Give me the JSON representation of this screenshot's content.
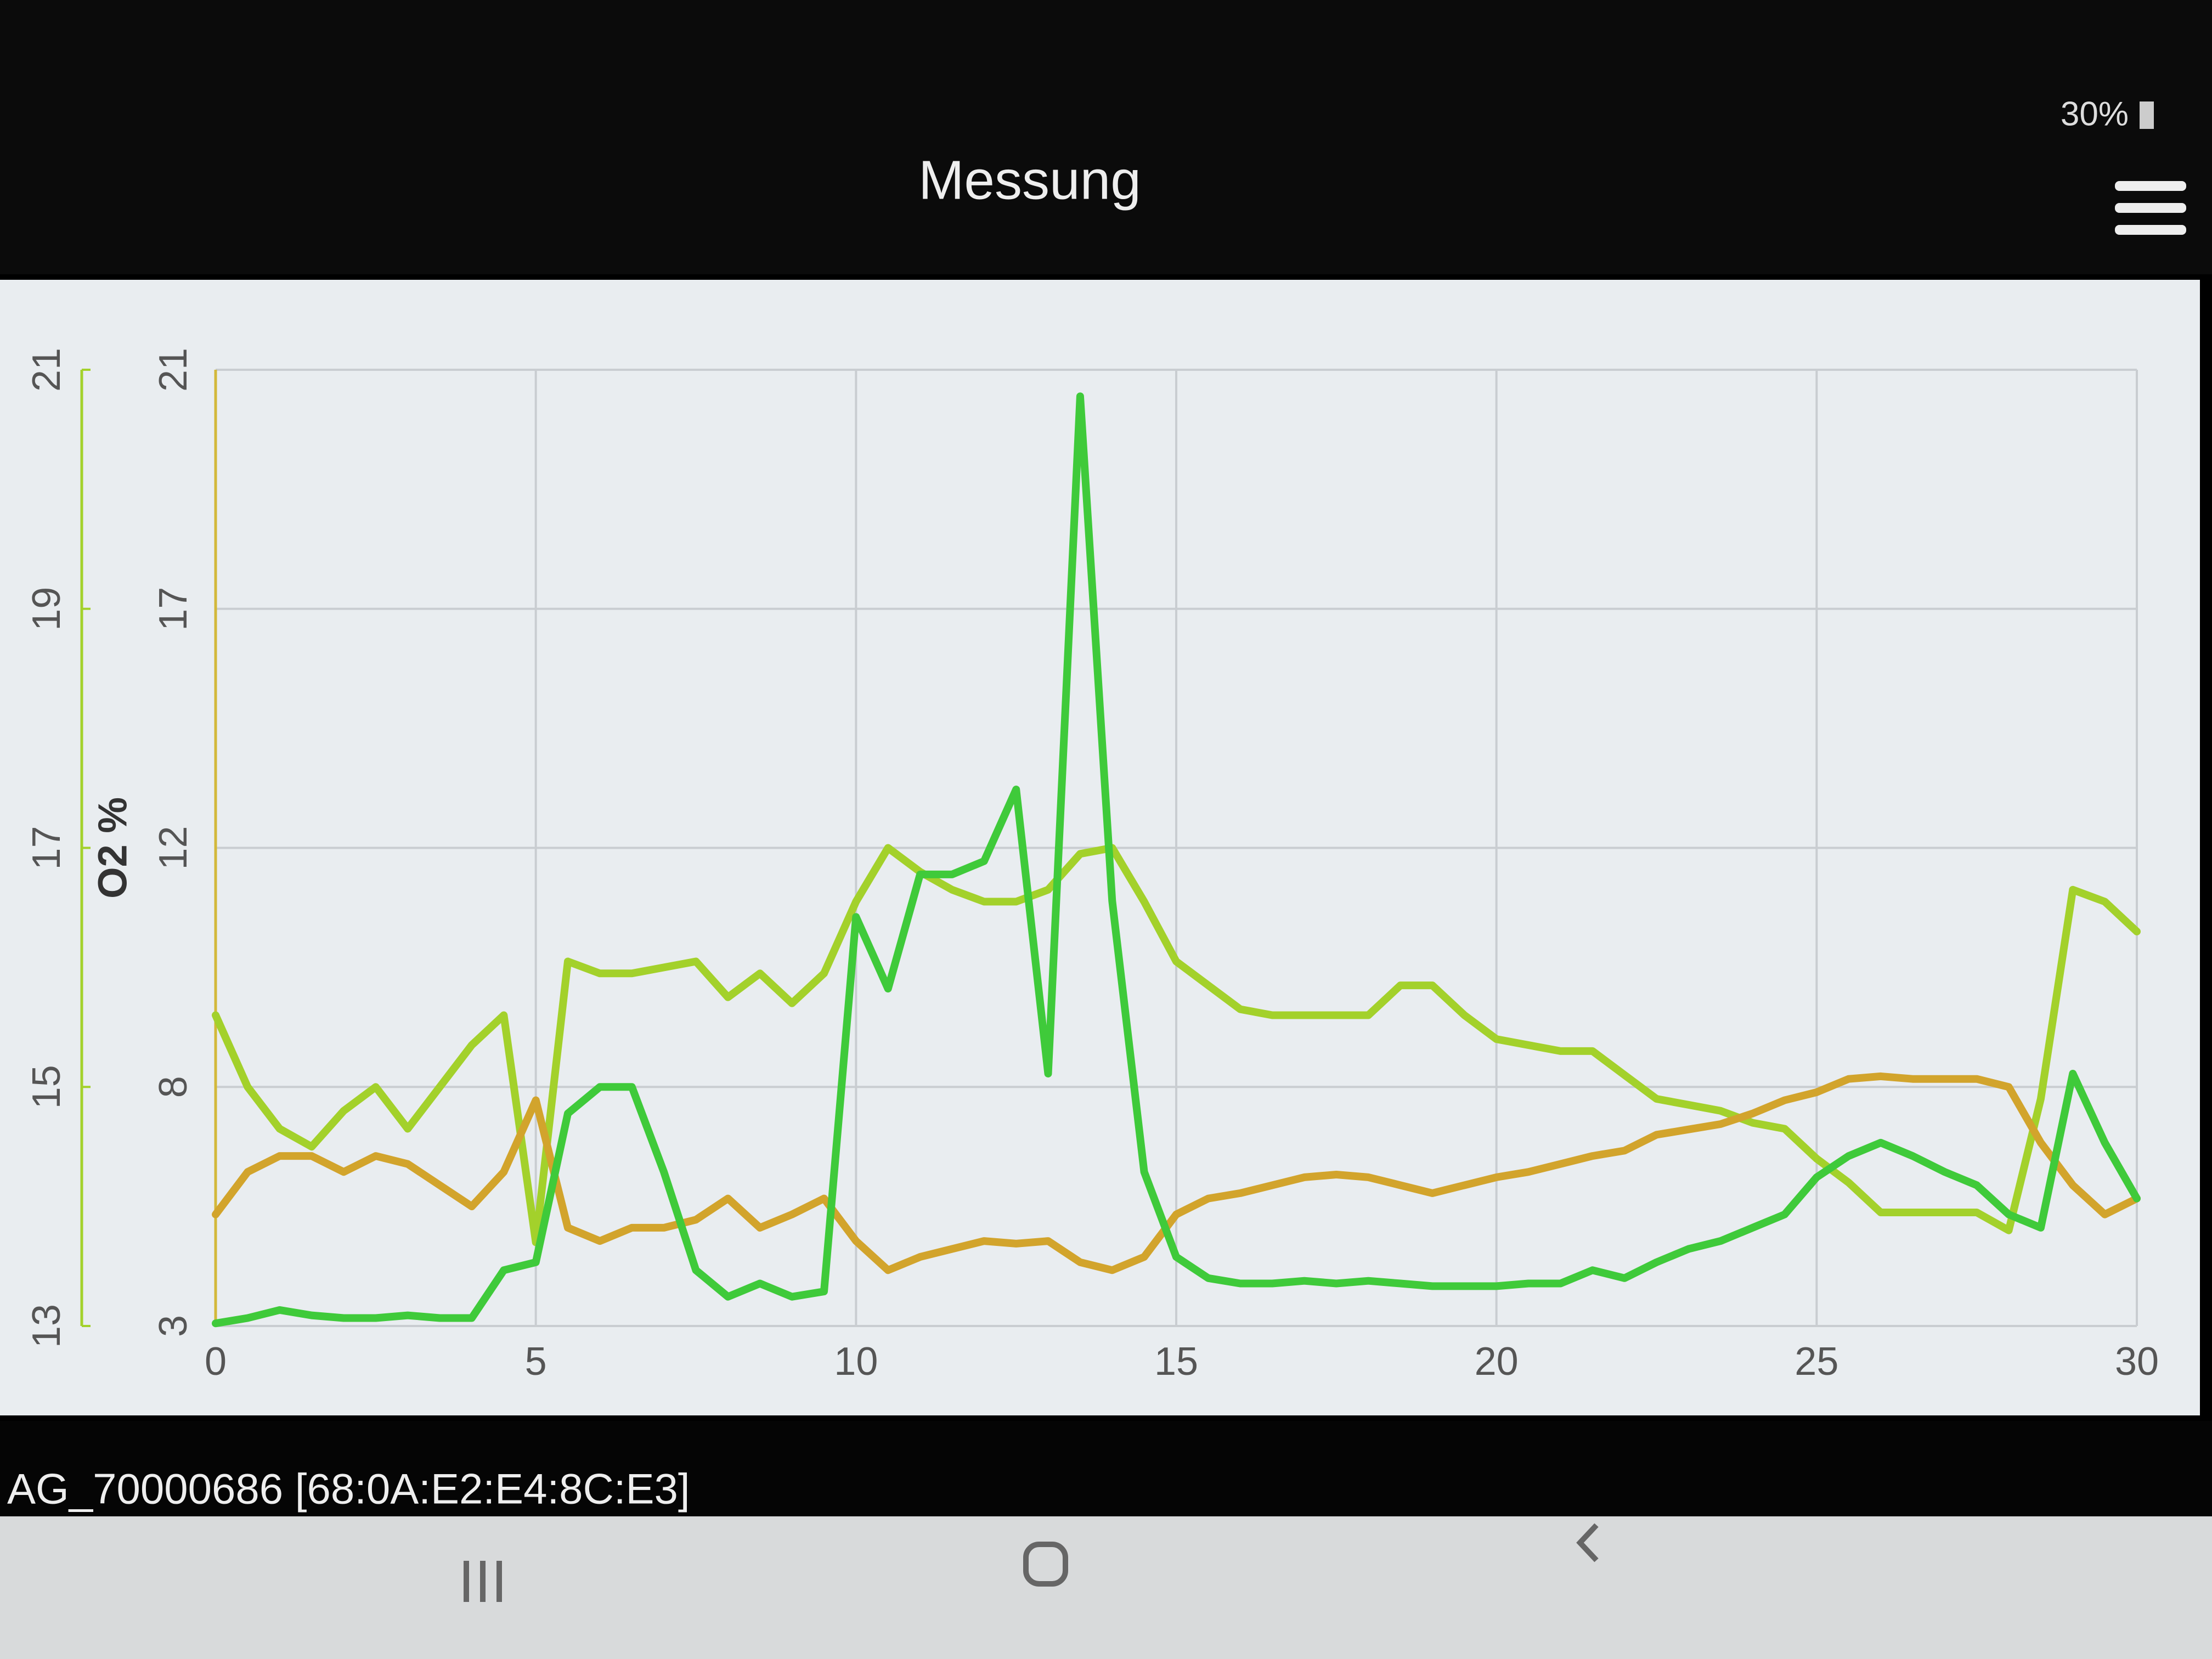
{
  "status_bar": {
    "battery": "30%"
  },
  "header": {
    "title": "Messung"
  },
  "chart_data": {
    "type": "line",
    "y2label": "O2 %",
    "x": [
      0,
      0.5,
      1,
      1.5,
      2,
      2.5,
      3,
      3.5,
      4,
      4.5,
      5,
      5.5,
      6,
      6.5,
      7,
      7.5,
      8,
      8.5,
      9,
      9.5,
      10,
      10.5,
      11,
      11.5,
      12,
      12.5,
      13,
      13.5,
      14,
      14.5,
      15,
      15.5,
      16,
      16.5,
      17,
      17.5,
      18,
      18.5,
      19,
      19.5,
      20,
      20.5,
      21,
      21.5,
      22,
      22.5,
      23,
      23.5,
      24,
      24.5,
      25,
      25.5,
      26,
      26.5,
      27,
      27.5,
      28,
      28.5,
      29,
      29.5,
      30
    ],
    "xlim": [
      0,
      30
    ],
    "xticks": [
      0,
      5,
      10,
      15,
      20,
      25,
      30
    ],
    "ylim": [
      3,
      21
    ],
    "yticks": [
      3,
      {
        "value": 7.5,
        "label": "8"
      },
      12,
      {
        "value": 16.5,
        "label": "17"
      },
      21
    ],
    "y2lim": [
      13,
      21
    ],
    "y2ticks": [
      13,
      15,
      17,
      19,
      21
    ],
    "grid": true,
    "series": [
      {
        "color": "#a3d12b",
        "axis": "y2",
        "values": [
          15.6,
          15.0,
          14.65,
          14.5,
          14.8,
          15.0,
          14.65,
          15.0,
          15.35,
          15.6,
          13.7,
          16.05,
          15.95,
          15.95,
          16.0,
          16.05,
          15.75,
          15.95,
          15.7,
          15.95,
          16.55,
          17.0,
          16.8,
          16.65,
          16.55,
          16.55,
          16.65,
          16.95,
          17.0,
          16.55,
          16.05,
          15.85,
          15.65,
          15.6,
          15.6,
          15.6,
          15.6,
          15.85,
          15.85,
          15.6,
          15.4,
          15.35,
          15.3,
          15.3,
          15.1,
          14.9,
          14.85,
          14.8,
          14.7,
          14.65,
          14.4,
          14.2,
          13.95,
          13.95,
          13.95,
          13.95,
          13.8,
          14.9,
          16.65,
          16.55,
          16.3
        ]
      },
      {
        "color": "#d2a42c",
        "values": [
          5.1,
          5.9,
          6.2,
          6.2,
          5.9,
          6.2,
          6.05,
          5.65,
          5.25,
          5.9,
          7.25,
          4.85,
          4.6,
          4.85,
          4.85,
          5.0,
          5.4,
          4.85,
          5.1,
          5.4,
          4.6,
          4.05,
          4.3,
          4.45,
          4.6,
          4.55,
          4.6,
          4.2,
          4.05,
          4.3,
          5.1,
          5.4,
          5.5,
          5.65,
          5.8,
          5.85,
          5.8,
          5.65,
          5.5,
          5.65,
          5.8,
          5.9,
          6.05,
          6.2,
          6.3,
          6.6,
          6.7,
          6.8,
          7.0,
          7.25,
          7.4,
          7.65,
          7.7,
          7.65,
          7.65,
          7.65,
          7.5,
          6.45,
          5.65,
          5.1,
          5.4
        ]
      },
      {
        "color": "#3fca3a",
        "values": [
          3.05,
          3.15,
          3.3,
          3.2,
          3.15,
          3.15,
          3.2,
          3.15,
          3.15,
          4.05,
          4.2,
          7.0,
          7.5,
          7.5,
          5.9,
          4.05,
          3.55,
          3.8,
          3.55,
          3.65,
          10.7,
          9.35,
          11.5,
          11.5,
          11.75,
          13.1,
          7.75,
          20.5,
          11.0,
          5.9,
          4.3,
          3.9,
          3.8,
          3.8,
          3.85,
          3.8,
          3.85,
          3.8,
          3.75,
          3.75,
          3.75,
          3.8,
          3.8,
          4.05,
          3.9,
          4.2,
          4.45,
          4.6,
          4.85,
          5.1,
          5.8,
          6.2,
          6.45,
          6.2,
          5.9,
          5.65,
          5.1,
          4.85,
          7.75,
          6.45,
          5.4
        ]
      }
    ]
  },
  "footer": {
    "device": "AG_70000686 [68:0A:E2:E4:8C:E3]"
  }
}
